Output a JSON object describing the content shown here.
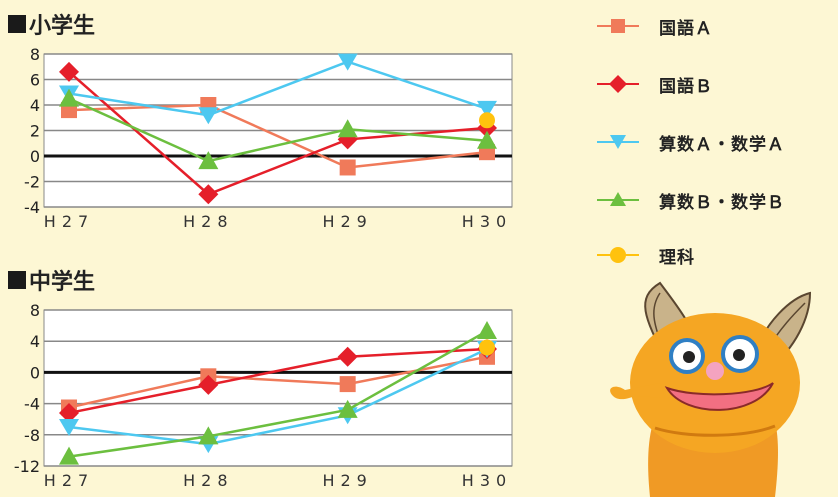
{
  "headings": {
    "elementary": "小学生",
    "junior": "中学生"
  },
  "legend": [
    {
      "name": "国語Ａ",
      "color": "#f07a5a",
      "marker": "square"
    },
    {
      "name": "国語Ｂ",
      "color": "#e51f2a",
      "marker": "diamond"
    },
    {
      "name": "算数Ａ・数学Ａ",
      "color": "#4dc8f0",
      "marker": "triangle-down"
    },
    {
      "name": "算数Ｂ・数学Ｂ",
      "color": "#6cbf3f",
      "marker": "triangle-up"
    },
    {
      "name": "理科",
      "color": "#ffc20e",
      "marker": "circle"
    }
  ],
  "chart_data": [
    {
      "type": "line",
      "title": "小学生",
      "categories": [
        "H27",
        "H28",
        "H29",
        "H30"
      ],
      "ylim": [
        -4,
        8
      ],
      "yticks": [
        8,
        6,
        4,
        2,
        0,
        -2,
        -4
      ],
      "grid": true,
      "series": [
        {
          "name": "国語Ａ",
          "values": [
            3.6,
            4.0,
            -0.9,
            0.3
          ]
        },
        {
          "name": "国語Ｂ",
          "values": [
            6.6,
            -3.0,
            1.3,
            2.2
          ]
        },
        {
          "name": "算数Ａ・数学Ａ",
          "values": [
            4.9,
            3.2,
            7.4,
            3.7
          ]
        },
        {
          "name": "算数Ｂ・数学Ｂ",
          "values": [
            4.5,
            -0.4,
            2.1,
            1.2
          ]
        },
        {
          "name": "理科",
          "values": [
            null,
            null,
            null,
            2.8
          ]
        }
      ]
    },
    {
      "type": "line",
      "title": "中学生",
      "categories": [
        "H27",
        "H28",
        "H29",
        "H30"
      ],
      "ylim": [
        -12,
        8
      ],
      "yticks": [
        8,
        4,
        0,
        -4,
        -8,
        -12
      ],
      "grid": true,
      "series": [
        {
          "name": "国語Ａ",
          "values": [
            -4.5,
            -0.5,
            -1.5,
            2.0
          ]
        },
        {
          "name": "国語Ｂ",
          "values": [
            -5.2,
            -1.6,
            2.0,
            3.0
          ]
        },
        {
          "name": "算数Ａ・数学Ａ",
          "values": [
            -7.0,
            -9.2,
            -5.5,
            3.0
          ]
        },
        {
          "name": "算数Ｂ・数学Ｂ",
          "values": [
            -10.8,
            -8.2,
            -4.8,
            5.3
          ]
        },
        {
          "name": "理科",
          "values": [
            null,
            null,
            null,
            3.2
          ]
        }
      ]
    }
  ]
}
